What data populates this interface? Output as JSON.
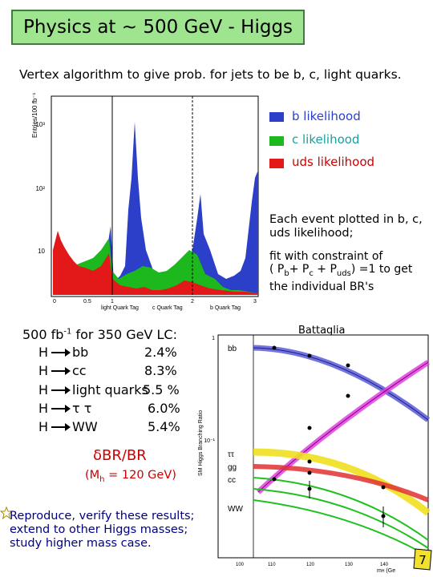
{
  "title": "Physics at ~ 500 GeV - Higgs",
  "subtitle": "Vertex algorithm to give prob. for jets to be b, c, light quarks.",
  "histogram": {
    "ylabel": "Entries/100 fb⁻¹",
    "y_ticks": [
      "10³",
      "10²",
      "10"
    ],
    "x_ticks": [
      "0",
      "0.5",
      "1",
      "2",
      "3"
    ],
    "x_group_labels": [
      "light Quark Tag",
      "c Quark Tag",
      "b Quark Tag"
    ]
  },
  "legend": [
    {
      "label": "b likelihood",
      "color": "#2b3fc8",
      "text_color": "#2b3fc8"
    },
    {
      "label": "c likelihood",
      "color": "#1db81d",
      "text_color": "#1aa0a0"
    },
    {
      "label": "uds likelihood",
      "color": "#e31919",
      "text_color": "#cc0000"
    }
  ],
  "event_text": "Each event plotted in b, c, uds likelihood;",
  "fit_text": {
    "line1": "fit with constraint of",
    "line2_a": "( P",
    "sub_b": "b",
    "plus1": "+ P",
    "sub_c": "c",
    "plus2": " + P",
    "sub_uds": "uds",
    "line2_b": ") =1  to get",
    "line3": "the individual BR's"
  },
  "lumi_title_a": "500 fb",
  "lumi_title_sup": "-1",
  "lumi_title_b": " for 350 GeV LC:",
  "decays": [
    {
      "H": "H",
      "mode": "bb",
      "value": "2.4%"
    },
    {
      "H": "H",
      "mode": "cc",
      "value": "8.3%"
    },
    {
      "H": "H",
      "mode": "light quarks",
      "value": "5.5 %"
    },
    {
      "H": "H",
      "mode": "τ τ",
      "value": "6.0%"
    },
    {
      "H": "H",
      "mode": "WW",
      "value": "5.4%"
    }
  ],
  "dbr_label": "δBR/BR",
  "mh_note": "(M",
  "mh_sub": "h",
  "mh_note_b": " = 120 GeV)",
  "repro_text": "Reproduce, verify these results; extend to other Higgs masses; study higher mass case.",
  "battaglia": "Battaglia",
  "br_chart": {
    "ylabel": "SM Higgs Branching Ratio",
    "y_ticks": [
      "1",
      "10⁻¹"
    ],
    "x_ticks": [
      "100",
      "110",
      "120",
      "130",
      "140",
      "150"
    ],
    "xlabel": "m",
    "xlabel_sub": "H",
    "xlabel_b": " (Ge",
    "curve_labels": [
      "bb",
      "ττ",
      "gg",
      "cc",
      "WW"
    ]
  },
  "page_number": "7"
}
